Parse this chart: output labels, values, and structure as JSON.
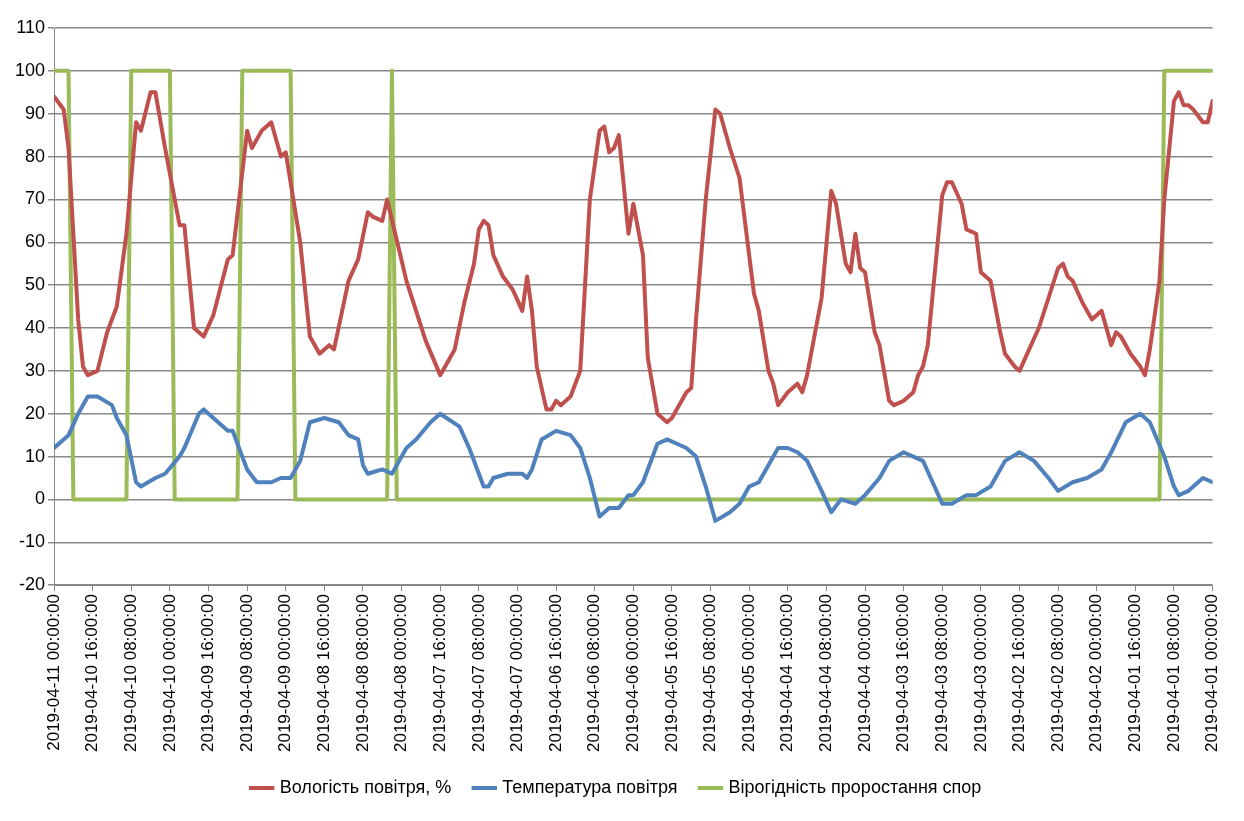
{
  "chart_data": {
    "type": "line",
    "xlim": [
      "2019-04-11T00:00",
      "2019-04-01T00:00"
    ],
    "xticks": [
      {
        "value": "2019-04-11T00:00",
        "label": "2019-04-11 00:00:00"
      },
      {
        "value": "2019-04-10T16:00",
        "label": "2019-04-10 16:00:00"
      },
      {
        "value": "2019-04-10T08:00",
        "label": "2019-04-10 08:00:00"
      },
      {
        "value": "2019-04-10T00:00",
        "label": "2019-04-10 00:00:00"
      },
      {
        "value": "2019-04-09T16:00",
        "label": "2019-04-09 16:00:00"
      },
      {
        "value": "2019-04-09T08:00",
        "label": "2019-04-09 08:00:00"
      },
      {
        "value": "2019-04-09T00:00",
        "label": "2019-04-09 00:00:00"
      },
      {
        "value": "2019-04-08T16:00",
        "label": "2019-04-08 16:00:00"
      },
      {
        "value": "2019-04-08T08:00",
        "label": "2019-04-08 08:00:00"
      },
      {
        "value": "2019-04-08T00:00",
        "label": "2019-04-08 00:00:00"
      },
      {
        "value": "2019-04-07T16:00",
        "label": "2019-04-07 16:00:00"
      },
      {
        "value": "2019-04-07T08:00",
        "label": "2019-04-07 08:00:00"
      },
      {
        "value": "2019-04-07T00:00",
        "label": "2019-04-07 00:00:00"
      },
      {
        "value": "2019-04-06T16:00",
        "label": "2019-04-06 16:00:00"
      },
      {
        "value": "2019-04-06T08:00",
        "label": "2019-04-06 08:00:00"
      },
      {
        "value": "2019-04-06T00:00",
        "label": "2019-04-06 00:00:00"
      },
      {
        "value": "2019-04-05T16:00",
        "label": "2019-04-05 16:00:00"
      },
      {
        "value": "2019-04-05T08:00",
        "label": "2019-04-05 08:00:00"
      },
      {
        "value": "2019-04-05T00:00",
        "label": "2019-04-05 00:00:00"
      },
      {
        "value": "2019-04-04T16:00",
        "label": "2019-04-04 16:00:00"
      },
      {
        "value": "2019-04-04T08:00",
        "label": "2019-04-04 08:00:00"
      },
      {
        "value": "2019-04-04T00:00",
        "label": "2019-04-04 00:00:00"
      },
      {
        "value": "2019-04-03T16:00",
        "label": "2019-04-03 16:00:00"
      },
      {
        "value": "2019-04-03T08:00",
        "label": "2019-04-03 08:00:00"
      },
      {
        "value": "2019-04-03T00:00",
        "label": "2019-04-03 00:00:00"
      },
      {
        "value": "2019-04-02T16:00",
        "label": "2019-04-02 16:00:00"
      },
      {
        "value": "2019-04-02T08:00",
        "label": "2019-04-02 08:00:00"
      },
      {
        "value": "2019-04-02T00:00",
        "label": "2019-04-02 00:00:00"
      },
      {
        "value": "2019-04-01T16:00",
        "label": "2019-04-01 16:00:00"
      },
      {
        "value": "2019-04-01T08:00",
        "label": "2019-04-01 08:00:00"
      },
      {
        "value": "2019-04-01T00:00",
        "label": "2019-04-01 00:00:00"
      }
    ],
    "ylim": [
      -20,
      110
    ],
    "yticks": [
      -20,
      -10,
      0,
      10,
      20,
      30,
      40,
      50,
      60,
      70,
      80,
      90,
      100,
      110
    ],
    "grid": "y",
    "legend": "bottom",
    "marker": "none",
    "line_style": "solid",
    "series": [
      {
        "name": "Вологість повітря, %",
        "color": "#c0504d",
        "x": [
          "2019-04-11T00:00",
          "2019-04-10T22:00",
          "2019-04-10T21:00",
          "2019-04-10T19:00",
          "2019-04-10T18:00",
          "2019-04-10T17:00",
          "2019-04-10T15:00",
          "2019-04-10T13:00",
          "2019-04-10T11:00",
          "2019-04-10T09:00",
          "2019-04-10T07:00",
          "2019-04-10T06:00",
          "2019-04-10T04:00",
          "2019-04-10T03:00",
          "2019-04-10T01:00",
          "2019-04-09T22:00",
          "2019-04-09T21:00",
          "2019-04-09T19:00",
          "2019-04-09T17:00",
          "2019-04-09T15:00",
          "2019-04-09T12:00",
          "2019-04-09T11:00",
          "2019-04-09T08:00",
          "2019-04-09T07:00",
          "2019-04-09T05:00",
          "2019-04-09T03:00",
          "2019-04-09T01:00",
          "2019-04-09T00:00",
          "2019-04-08T21:00",
          "2019-04-08T19:00",
          "2019-04-08T17:00",
          "2019-04-08T15:00",
          "2019-04-08T14:00",
          "2019-04-08T11:00",
          "2019-04-08T09:00",
          "2019-04-08T07:00",
          "2019-04-08T06:00",
          "2019-04-08T04:00",
          "2019-04-08T03:00",
          "2019-04-07T23:00",
          "2019-04-07T19:00",
          "2019-04-07T16:00",
          "2019-04-07T13:00",
          "2019-04-07T11:00",
          "2019-04-07T09:00",
          "2019-04-07T08:00",
          "2019-04-07T07:00",
          "2019-04-07T06:00",
          "2019-04-07T05:00",
          "2019-04-07T03:00",
          "2019-04-07T01:00",
          "2019-04-06T23:00",
          "2019-04-06T22:00",
          "2019-04-06T21:00",
          "2019-04-06T20:00",
          "2019-04-06T18:00",
          "2019-04-06T17:00",
          "2019-04-06T16:00",
          "2019-04-06T15:00",
          "2019-04-06T13:00",
          "2019-04-06T11:00",
          "2019-04-06T09:00",
          "2019-04-06T07:00",
          "2019-04-06T06:00",
          "2019-04-06T05:00",
          "2019-04-06T04:00",
          "2019-04-06T03:00",
          "2019-04-06T01:00",
          "2019-04-06T00:00",
          "2019-04-05T22:00",
          "2019-04-05T21:00",
          "2019-04-05T19:00",
          "2019-04-05T17:00",
          "2019-04-05T16:00",
          "2019-04-05T13:00",
          "2019-04-05T12:00",
          "2019-04-05T11:00",
          "2019-04-05T09:00",
          "2019-04-05T07:00",
          "2019-04-05T06:00",
          "2019-04-05T04:00",
          "2019-04-05T02:00",
          "2019-04-04T23:00",
          "2019-04-04T22:00",
          "2019-04-04T20:00",
          "2019-04-04T19:00",
          "2019-04-04T18:00",
          "2019-04-04T16:00",
          "2019-04-04T14:00",
          "2019-04-04T13:00",
          "2019-04-04T12:00",
          "2019-04-04T09:00",
          "2019-04-04T07:00",
          "2019-04-04T06:00",
          "2019-04-04T04:00",
          "2019-04-04T03:00",
          "2019-04-04T02:00",
          "2019-04-04T01:00",
          "2019-04-04T00:00",
          "2019-04-03T22:00",
          "2019-04-03T21:00",
          "2019-04-03T19:00",
          "2019-04-03T18:00",
          "2019-04-03T16:00",
          "2019-04-03T14:00",
          "2019-04-03T13:00",
          "2019-04-03T12:00",
          "2019-04-03T11:00",
          "2019-04-03T08:00",
          "2019-04-03T07:00",
          "2019-04-03T06:00",
          "2019-04-03T04:00",
          "2019-04-03T03:00",
          "2019-04-03T01:00",
          "2019-04-03T00:00",
          "2019-04-02T22:00",
          "2019-04-02T20:00",
          "2019-04-02T19:00",
          "2019-04-02T17:00",
          "2019-04-02T16:00",
          "2019-04-02T14:00",
          "2019-04-02T12:00",
          "2019-04-02T10:00",
          "2019-04-02T08:00",
          "2019-04-02T07:00",
          "2019-04-02T06:00",
          "2019-04-02T05:00",
          "2019-04-02T03:00",
          "2019-04-02T01:00",
          "2019-04-01T23:00",
          "2019-04-01T21:00",
          "2019-04-01T20:00",
          "2019-04-01T19:00",
          "2019-04-01T17:00",
          "2019-04-01T15:00",
          "2019-04-01T14:00",
          "2019-04-01T13:00",
          "2019-04-01T11:00",
          "2019-04-01T10:00",
          "2019-04-01T08:00",
          "2019-04-01T07:00",
          "2019-04-01T06:00",
          "2019-04-01T05:00",
          "2019-04-01T04:00",
          "2019-04-01T02:00",
          "2019-04-01T01:00",
          "2019-04-01T00:00"
        ],
        "values": [
          94,
          91,
          82,
          42,
          31,
          29,
          30,
          39,
          45,
          62,
          88,
          86,
          95,
          95,
          82,
          64,
          64,
          40,
          38,
          43,
          56,
          57,
          86,
          82,
          86,
          88,
          80,
          81,
          60,
          38,
          34,
          36,
          35,
          51,
          56,
          67,
          66,
          65,
          70,
          51,
          37,
          29,
          35,
          46,
          55,
          63,
          65,
          64,
          57,
          52,
          49,
          44,
          52,
          44,
          31,
          21,
          21,
          23,
          22,
          24,
          30,
          70,
          86,
          87,
          81,
          82,
          85,
          62,
          69,
          57,
          33,
          20,
          18,
          19,
          25,
          26,
          42,
          70,
          91,
          90,
          82,
          75,
          48,
          44,
          30,
          27,
          22,
          25,
          27,
          25,
          29,
          47,
          72,
          69,
          55,
          53,
          62,
          54,
          53,
          39,
          36,
          23,
          22,
          23,
          25,
          29,
          31,
          36,
          71,
          74,
          74,
          69,
          63,
          62,
          53,
          51,
          39,
          34,
          31,
          30,
          35,
          40,
          47,
          54,
          55,
          52,
          51,
          46,
          42,
          44,
          36,
          39,
          38,
          34,
          31,
          29,
          35,
          51,
          70,
          93,
          95,
          92,
          92,
          91,
          88,
          88,
          93
        ]
      },
      {
        "name": "Температура повітря",
        "color": "#4f81bd",
        "x": [
          "2019-04-11T00:00",
          "2019-04-10T21:00",
          "2019-04-10T19:00",
          "2019-04-10T17:00",
          "2019-04-10T15:00",
          "2019-04-10T12:00",
          "2019-04-10T11:00",
          "2019-04-10T09:00",
          "2019-04-10T07:00",
          "2019-04-10T06:00",
          "2019-04-10T03:00",
          "2019-04-10T01:00",
          "2019-04-09T22:00",
          "2019-04-09T21:00",
          "2019-04-09T18:00",
          "2019-04-09T17:00",
          "2019-04-09T15:00",
          "2019-04-09T12:00",
          "2019-04-09T11:00",
          "2019-04-09T08:00",
          "2019-04-09T06:00",
          "2019-04-09T03:00",
          "2019-04-09T01:00",
          "2019-04-08T23:00",
          "2019-04-08T21:00",
          "2019-04-08T19:00",
          "2019-04-08T16:00",
          "2019-04-08T13:00",
          "2019-04-08T11:00",
          "2019-04-08T09:00",
          "2019-04-08T08:00",
          "2019-04-08T07:00",
          "2019-04-08T04:00",
          "2019-04-08T02:00",
          "2019-04-07T23:00",
          "2019-04-07T21:00",
          "2019-04-07T18:00",
          "2019-04-07T16:00",
          "2019-04-07T12:00",
          "2019-04-07T10:00",
          "2019-04-07T07:00",
          "2019-04-07T06:00",
          "2019-04-07T05:00",
          "2019-04-07T02:00",
          "2019-04-07T01:00",
          "2019-04-06T23:00",
          "2019-04-06T22:00",
          "2019-04-06T21:00",
          "2019-04-06T19:00",
          "2019-04-06T16:00",
          "2019-04-06T13:00",
          "2019-04-06T11:00",
          "2019-04-06T09:00",
          "2019-04-06T07:00",
          "2019-04-06T05:00",
          "2019-04-06T03:00",
          "2019-04-06T01:00",
          "2019-04-06T00:00",
          "2019-04-05T22:00",
          "2019-04-05T19:00",
          "2019-04-05T17:00",
          "2019-04-05T13:00",
          "2019-04-05T11:00",
          "2019-04-05T09:00",
          "2019-04-05T07:00",
          "2019-04-05T04:00",
          "2019-04-05T02:00",
          "2019-04-05T00:00",
          "2019-04-04T22:00",
          "2019-04-04T18:00",
          "2019-04-04T16:00",
          "2019-04-04T14:00",
          "2019-04-04T12:00",
          "2019-04-04T09:00",
          "2019-04-04T07:00",
          "2019-04-04T05:00",
          "2019-04-04T02:00",
          "2019-04-04T00:00",
          "2019-04-03T21:00",
          "2019-04-03T19:00",
          "2019-04-03T16:00",
          "2019-04-03T14:00",
          "2019-04-03T12:00",
          "2019-04-03T10:00",
          "2019-04-03T08:00",
          "2019-04-03T06:00",
          "2019-04-03T03:00",
          "2019-04-03T01:00",
          "2019-04-02T22:00",
          "2019-04-02T19:00",
          "2019-04-02T16:00",
          "2019-04-02T13:00",
          "2019-04-02T10:00",
          "2019-04-02T08:00",
          "2019-04-02T05:00",
          "2019-04-02T02:00",
          "2019-04-01T23:00",
          "2019-04-01T21:00",
          "2019-04-01T18:00",
          "2019-04-01T15:00",
          "2019-04-01T13:00",
          "2019-04-01T10:00",
          "2019-04-01T08:00",
          "2019-04-01T07:00",
          "2019-04-01T05:00",
          "2019-04-01T04:00",
          "2019-04-01T02:00",
          "2019-04-01T00:00"
        ],
        "values": [
          12,
          15,
          20,
          24,
          24,
          22,
          19,
          15,
          4,
          3,
          5,
          6,
          10,
          12,
          20,
          21,
          19,
          16,
          16,
          7,
          4,
          4,
          5,
          5,
          9,
          18,
          19,
          18,
          15,
          14,
          8,
          6,
          7,
          6,
          12,
          14,
          18,
          20,
          17,
          12,
          3,
          3,
          5,
          6,
          6,
          6,
          5,
          7,
          14,
          16,
          15,
          12,
          5,
          -4,
          -2,
          -2,
          1,
          1,
          4,
          13,
          14,
          12,
          10,
          3,
          -5,
          -3,
          -1,
          3,
          4,
          12,
          12,
          11,
          9,
          2,
          -3,
          0,
          -1,
          1,
          5,
          9,
          11,
          10,
          9,
          4,
          -1,
          -1,
          1,
          1,
          3,
          9,
          11,
          9,
          5,
          2,
          4,
          5,
          7,
          11,
          18,
          20,
          18,
          10,
          3,
          1,
          2,
          3,
          5,
          4
        ]
      },
      {
        "name": "Вірогідність проростання спор",
        "color": "#9bbb59",
        "x": [
          "2019-04-11T00:00",
          "2019-04-10T21:00",
          "2019-04-10T20:00",
          "2019-04-10T09:00",
          "2019-04-10T08:00",
          "2019-04-10T00:00",
          "2019-04-09T23:00",
          "2019-04-09T10:00",
          "2019-04-09T09:00",
          "2019-04-08T23:00",
          "2019-04-08T22:00",
          "2019-04-08T03:00",
          "2019-04-08T02:00",
          "2019-04-08T01:00",
          "2019-04-01T11:00",
          "2019-04-01T10:00",
          "2019-04-01T00:00"
        ],
        "values": [
          100,
          100,
          0,
          0,
          100,
          100,
          0,
          0,
          100,
          100,
          0,
          0,
          100,
          0,
          0,
          100,
          100
        ]
      }
    ]
  }
}
